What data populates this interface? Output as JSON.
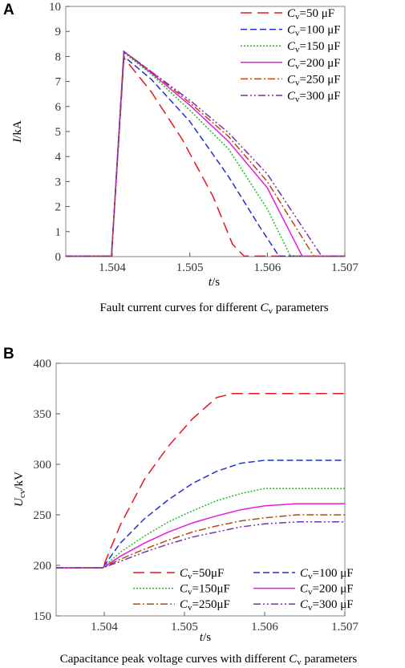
{
  "chart_data": [
    {
      "panel": "A",
      "type": "line",
      "caption_prefix": "Fault current curves for different ",
      "caption_var": "C",
      "caption_sub": "v",
      "caption_suffix": " parameters",
      "xlabel": "t",
      "xunit": "/s",
      "ylabel": "I",
      "yunit": "/kA",
      "xlim": [
        1.5034,
        1.507
      ],
      "ylim": [
        0,
        10
      ],
      "xticks": [
        1.504,
        1.505,
        1.506,
        1.507
      ],
      "xtick_labels": [
        "1.504",
        "1.505",
        "1.506",
        "1.507"
      ],
      "yticks": [
        0,
        1,
        2,
        3,
        4,
        5,
        6,
        7,
        8,
        9,
        10
      ],
      "ytick_labels": [
        "0",
        "1",
        "2",
        "3",
        "4",
        "5",
        "6",
        "7",
        "8",
        "9",
        "10"
      ],
      "legend_position": "top-right",
      "series": [
        {
          "name_var": "C",
          "name_sub": "v",
          "name_value": "=50 μF",
          "color": "#e8141e",
          "dash": "14,7",
          "x": [
            1.5034,
            1.50399,
            1.50415,
            1.5045,
            1.5049,
            1.5053,
            1.50555,
            1.5057,
            1.507
          ],
          "y": [
            0.02,
            0.02,
            7.95,
            6.6,
            4.7,
            2.4,
            0.5,
            0.02,
            0.02
          ]
        },
        {
          "name_var": "C",
          "name_sub": "v",
          "name_value": "=100 μF",
          "color": "#1f2fd6",
          "dash": "8,4",
          "x": [
            1.5034,
            1.50399,
            1.50415,
            1.5045,
            1.505,
            1.5055,
            1.5059,
            1.50615,
            1.507
          ],
          "y": [
            0.02,
            0.02,
            8.0,
            7.1,
            5.4,
            3.2,
            1.2,
            0.02,
            0.02
          ]
        },
        {
          "name_var": "C",
          "name_sub": "v",
          "name_value": "=150 μF",
          "color": "#12c21a",
          "dash": "2,2",
          "x": [
            1.5034,
            1.50399,
            1.50415,
            1.5045,
            1.505,
            1.5055,
            1.506,
            1.5063,
            1.507
          ],
          "y": [
            0.02,
            0.02,
            8.15,
            7.3,
            5.85,
            4.3,
            1.9,
            0.02,
            0.02
          ]
        },
        {
          "name_var": "C",
          "name_sub": "v",
          "name_value": "=200 μF",
          "color": "#e81ae0",
          "dash": "",
          "x": [
            1.5034,
            1.50399,
            1.50415,
            1.5045,
            1.505,
            1.5055,
            1.506,
            1.50645,
            1.507
          ],
          "y": [
            0.02,
            0.02,
            8.2,
            7.35,
            6.05,
            4.6,
            2.75,
            0.02,
            0.02
          ]
        },
        {
          "name_var": "C",
          "name_sub": "v",
          "name_value": "=250 μF",
          "color": "#b24a12",
          "dash": "9,3,2,3",
          "x": [
            1.5034,
            1.50399,
            1.50415,
            1.5045,
            1.505,
            1.5055,
            1.506,
            1.5066,
            1.507
          ],
          "y": [
            0.02,
            0.02,
            8.2,
            7.4,
            6.15,
            4.8,
            3.0,
            0.02,
            0.02
          ]
        },
        {
          "name_var": "C",
          "name_sub": "v",
          "name_value": "=300 μF",
          "color": "#7a2fa8",
          "dash": "9,3,2,3,2,3",
          "x": [
            1.5034,
            1.50399,
            1.50415,
            1.5045,
            1.505,
            1.5055,
            1.506,
            1.5067,
            1.507
          ],
          "y": [
            0.02,
            0.02,
            8.2,
            7.4,
            6.25,
            4.95,
            3.3,
            0.02,
            0.02
          ]
        }
      ]
    },
    {
      "panel": "B",
      "type": "line",
      "caption_prefix": "Capacitance peak voltage curves with different ",
      "caption_var": "C",
      "caption_sub": "v",
      "caption_suffix": " parameters",
      "xlabel": "t",
      "xunit": "/s",
      "ylabel": "U",
      "ylabel_sub": "cv",
      "yunit": "/kV",
      "xlim": [
        1.5034,
        1.507
      ],
      "ylim": [
        150,
        400
      ],
      "xticks": [
        1.504,
        1.505,
        1.506,
        1.507
      ],
      "xtick_labels": [
        "1.504",
        "1.505",
        "1.506",
        "1.507"
      ],
      "yticks": [
        150,
        200,
        250,
        300,
        350,
        400
      ],
      "ytick_labels": [
        "150",
        "200",
        "250",
        "300",
        "350",
        "400"
      ],
      "legend_position": "bottom-right",
      "series": [
        {
          "name_var": "C",
          "name_sub": "v",
          "name_value": "=50μF",
          "color": "#e8141e",
          "dash": "14,7",
          "x": [
            1.5034,
            1.50398,
            1.5042,
            1.5045,
            1.5048,
            1.5051,
            1.5054,
            1.5056,
            1.507
          ],
          "y": [
            197.5,
            197.5,
            240,
            285,
            318,
            345,
            366,
            370,
            370
          ]
        },
        {
          "name_var": "C",
          "name_sub": "v",
          "name_value": "=100 μF",
          "color": "#1f2fd6",
          "dash": "8,4",
          "x": [
            1.5034,
            1.50398,
            1.5042,
            1.5045,
            1.5048,
            1.5051,
            1.5054,
            1.5057,
            1.506,
            1.507
          ],
          "y": [
            197.5,
            197.5,
            222,
            246,
            265,
            281,
            293,
            301,
            304,
            304
          ]
        },
        {
          "name_var": "C",
          "name_sub": "v",
          "name_value": "=150μF",
          "color": "#12c21a",
          "dash": "2,2",
          "x": [
            1.5034,
            1.50398,
            1.5042,
            1.5045,
            1.5048,
            1.5051,
            1.5054,
            1.5057,
            1.506,
            1.507
          ],
          "y": [
            197.5,
            197.5,
            213,
            229,
            243,
            254,
            264,
            271,
            276,
            276
          ]
        },
        {
          "name_var": "C",
          "name_sub": "v",
          "name_value": "=200 μF",
          "color": "#e81ae0",
          "dash": "",
          "x": [
            1.5034,
            1.50398,
            1.5042,
            1.5045,
            1.5048,
            1.5051,
            1.5054,
            1.5057,
            1.506,
            1.5064,
            1.507
          ],
          "y": [
            197.5,
            197.5,
            209,
            222,
            233,
            242,
            249,
            255,
            259,
            261,
            261
          ]
        },
        {
          "name_var": "C",
          "name_sub": "v",
          "name_value": "=250μF",
          "color": "#b24a12",
          "dash": "9,3,2,3",
          "x": [
            1.5034,
            1.50398,
            1.5042,
            1.5045,
            1.5048,
            1.5051,
            1.5054,
            1.5057,
            1.506,
            1.5064,
            1.507
          ],
          "y": [
            197.5,
            197.5,
            206,
            216,
            225,
            233,
            239,
            244,
            247,
            250,
            250
          ]
        },
        {
          "name_var": "C",
          "name_sub": "v",
          "name_value": "=300 μF",
          "color": "#7a2fa8",
          "dash": "9,3,2,3,2,3",
          "x": [
            1.5034,
            1.50398,
            1.5042,
            1.5045,
            1.5048,
            1.5051,
            1.5054,
            1.5057,
            1.506,
            1.5064,
            1.507
          ],
          "y": [
            197.5,
            197.5,
            204,
            213,
            221,
            228,
            233,
            238,
            241,
            243,
            243
          ]
        }
      ]
    }
  ]
}
